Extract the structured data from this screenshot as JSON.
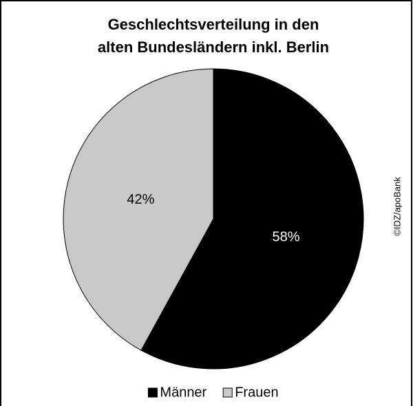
{
  "chart_data": {
    "type": "pie",
    "title": [
      "Geschlechtsverteilung in den",
      "alten Bundesländern inkl. Berlin"
    ],
    "categories": [
      "Männer",
      "Frauen"
    ],
    "values": [
      58,
      42
    ],
    "value_labels": [
      "58%",
      "42%"
    ],
    "colors": [
      "#000000",
      "#c8c8c8"
    ],
    "label_colors": [
      "#ffffff",
      "#000000"
    ],
    "source": "©IDZ/apoBank"
  }
}
